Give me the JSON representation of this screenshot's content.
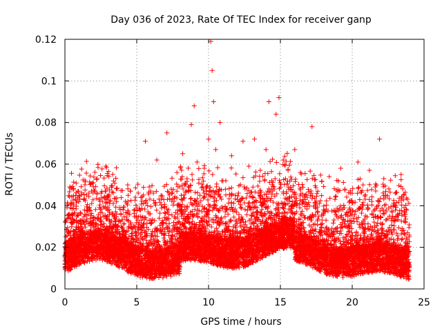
{
  "chart_data": {
    "type": "scatter",
    "title": "Day 036 of 2023, Rate Of TEC Index for receiver ganp",
    "xlabel": "GPS time / hours",
    "ylabel": "ROTI / TECUs",
    "xlim": [
      0,
      25
    ],
    "ylim": [
      0,
      0.12
    ],
    "x_ticks": [
      "0",
      "5",
      "10",
      "15",
      "20",
      "25"
    ],
    "y_ticks": [
      "0",
      "0.02",
      "0.04",
      "0.06",
      "0.08",
      "0.1",
      "0.12"
    ],
    "grid": true,
    "marker": "plus",
    "series": [
      {
        "color": "#ff0000",
        "x": [
          0.1,
          0.4,
          0.7,
          0.9,
          1.2,
          1.6,
          2.0,
          2.4,
          2.8,
          2.85,
          3.2,
          3.6,
          4.0,
          4.4,
          4.8,
          5.2,
          5.6,
          6.0,
          6.4,
          6.8,
          7.1,
          7.4,
          7.8,
          8.2,
          8.5,
          8.8,
          9.0,
          9.2,
          9.4,
          9.7,
          10.0,
          10.15,
          10.25,
          10.35,
          10.5,
          10.8,
          11.2,
          11.6,
          12.0,
          12.4,
          12.8,
          13.2,
          13.6,
          14.0,
          14.2,
          14.4,
          14.7,
          14.9,
          15.2,
          15.6,
          16.0,
          16.4,
          16.8,
          17.2,
          17.6,
          18.0,
          18.4,
          18.8,
          19.2,
          19.6,
          20.0,
          20.4,
          20.8,
          21.2,
          21.6,
          21.9,
          22.2,
          22.6,
          23.0,
          23.4,
          23.7,
          23.9
        ],
        "y": [
          0.013,
          0.032,
          0.022,
          0.044,
          0.028,
          0.019,
          0.033,
          0.021,
          0.047,
          0.059,
          0.018,
          0.036,
          0.024,
          0.045,
          0.017,
          0.038,
          0.071,
          0.025,
          0.062,
          0.032,
          0.075,
          0.048,
          0.056,
          0.065,
          0.053,
          0.079,
          0.088,
          0.061,
          0.045,
          0.058,
          0.072,
          0.119,
          0.105,
          0.09,
          0.067,
          0.08,
          0.052,
          0.064,
          0.043,
          0.071,
          0.059,
          0.072,
          0.057,
          0.067,
          0.09,
          0.052,
          0.084,
          0.092,
          0.062,
          0.048,
          0.067,
          0.056,
          0.041,
          0.078,
          0.047,
          0.038,
          0.054,
          0.043,
          0.058,
          0.036,
          0.046,
          0.061,
          0.029,
          0.057,
          0.049,
          0.072,
          0.053,
          0.035,
          0.04,
          0.055,
          0.032,
          0.02
        ]
      }
    ]
  }
}
